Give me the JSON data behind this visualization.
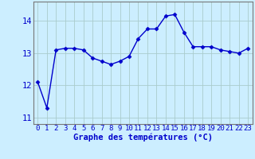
{
  "x": [
    0,
    1,
    2,
    3,
    4,
    5,
    6,
    7,
    8,
    9,
    10,
    11,
    12,
    13,
    14,
    15,
    16,
    17,
    18,
    19,
    20,
    21,
    22,
    23
  ],
  "y": [
    12.1,
    11.3,
    13.1,
    13.15,
    13.15,
    13.1,
    12.85,
    12.75,
    12.65,
    12.75,
    12.9,
    13.45,
    13.75,
    13.75,
    14.15,
    14.2,
    13.65,
    13.2,
    13.2,
    13.2,
    13.1,
    13.05,
    13.0,
    13.15
  ],
  "line_color": "#0000cc",
  "marker": "D",
  "markersize": 2.5,
  "linewidth": 1.0,
  "bg_color": "#cceeff",
  "grid_color": "#aacccc",
  "xlabel": "Graphe des températures (°C)",
  "xlabel_color": "#0000cc",
  "xlabel_fontsize": 7.5,
  "tick_color": "#0000cc",
  "tick_fontsize": 6.5,
  "ytick_fontsize": 7.5,
  "ylim": [
    10.8,
    14.6
  ],
  "yticks": [
    11,
    12,
    13,
    14
  ],
  "spine_color": "#777777"
}
